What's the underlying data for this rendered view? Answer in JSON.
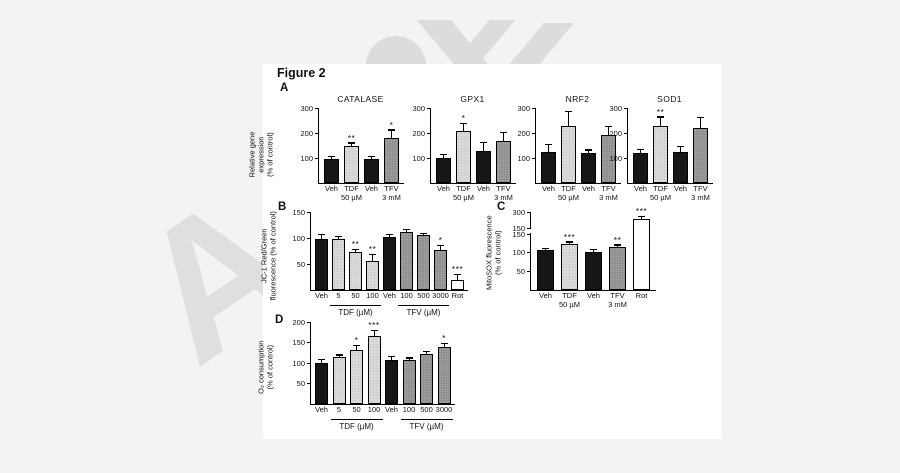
{
  "figure": {
    "title": "Figure 2"
  },
  "panels": {
    "A": "A",
    "B": "B",
    "C": "C",
    "D": "D"
  },
  "watermark": {
    "letter": "A"
  },
  "colors": {
    "bar_black": "#161616",
    "bar_light": "#d9d9d9",
    "bar_dark": "#8f8f8f",
    "bar_white": "#ffffff",
    "page": "#ffffff",
    "background": "#f3f3f3"
  },
  "chart_data": [
    {
      "type": "bar",
      "panel": "A",
      "title": "CATALASE",
      "ylabel": "Relative gene expression\n(% of control)",
      "categories": [
        "Veh",
        "TDF\n50 µM",
        "Veh",
        "TFV\n3 mM"
      ],
      "values": [
        95,
        150,
        95,
        182
      ],
      "errors": [
        10,
        8,
        10,
        28
      ],
      "sig": [
        "",
        "**",
        "",
        "*"
      ],
      "bar_colors": [
        "black",
        "light",
        "black",
        "dark"
      ],
      "yticks": [
        {
          "label": "100",
          "v": 100
        },
        {
          "label": "200",
          "v": 200
        },
        {
          "label": "300",
          "v": 300
        }
      ],
      "ylim": [
        0,
        300
      ],
      "grid": false
    },
    {
      "type": "bar",
      "panel": "A",
      "title": "GPX1",
      "ylabel": "",
      "categories": [
        "Veh",
        "TDF\n50 µM",
        "Veh",
        "TFV\n3 mM"
      ],
      "values": [
        100,
        210,
        130,
        168
      ],
      "errors": [
        12,
        25,
        30,
        33
      ],
      "sig": [
        "",
        "*",
        "",
        ""
      ],
      "bar_colors": [
        "black",
        "light",
        "black",
        "dark"
      ],
      "yticks": [
        {
          "label": "100",
          "v": 100
        },
        {
          "label": "200",
          "v": 200
        },
        {
          "label": "300",
          "v": 300
        }
      ],
      "ylim": [
        0,
        300
      ],
      "grid": false
    },
    {
      "type": "bar",
      "panel": "A",
      "title": "NRF2",
      "ylabel": "",
      "categories": [
        "Veh",
        "TDF\n50 µM",
        "Veh",
        "TFV\n3 mM"
      ],
      "values": [
        125,
        230,
        120,
        193
      ],
      "errors": [
        28,
        55,
        10,
        30
      ],
      "sig": [
        "",
        "",
        "",
        ""
      ],
      "bar_colors": [
        "black",
        "light",
        "black",
        "dark"
      ],
      "yticks": [
        {
          "label": "100",
          "v": 100
        },
        {
          "label": "200",
          "v": 200
        },
        {
          "label": "300",
          "v": 300
        }
      ],
      "ylim": [
        0,
        300
      ],
      "grid": false
    },
    {
      "type": "bar",
      "panel": "A",
      "title": "SOD1",
      "ylabel": "",
      "categories": [
        "Veh",
        "TDF\n50 µM",
        "Veh",
        "TFV\n3 mM"
      ],
      "values": [
        120,
        230,
        123,
        220
      ],
      "errors": [
        12,
        32,
        20,
        40
      ],
      "sig": [
        "",
        "**",
        "",
        ""
      ],
      "bar_colors": [
        "black",
        "light",
        "black",
        "dark"
      ],
      "yticks": [
        {
          "label": "100",
          "v": 100
        },
        {
          "label": "200",
          "v": 200
        },
        {
          "label": "300",
          "v": 300
        }
      ],
      "ylim": [
        0,
        300
      ],
      "grid": false
    },
    {
      "type": "bar",
      "panel": "B",
      "title": "",
      "ylabel": "JC-1 Red/Green\nfluorescence (% of control)",
      "categories": [
        "Veh",
        "5",
        "50",
        "100",
        "Veh",
        "100",
        "500",
        "3000",
        "Rot"
      ],
      "values": [
        98,
        99,
        73,
        55,
        102,
        112,
        106,
        77,
        20
      ],
      "errors": [
        8,
        3,
        4,
        12,
        3,
        3,
        2,
        7,
        8
      ],
      "sig": [
        "",
        "",
        "**",
        "**",
        "",
        "",
        "",
        "*",
        "***"
      ],
      "bar_colors": [
        "black",
        "light",
        "light",
        "light",
        "black",
        "dark",
        "dark",
        "dark",
        "white"
      ],
      "yticks": [
        {
          "label": "50",
          "v": 50
        },
        {
          "label": "100",
          "v": 100
        },
        {
          "label": "150",
          "v": 150
        }
      ],
      "ylim": [
        0,
        150
      ],
      "grid": false,
      "groups": [
        {
          "label": "TDF (µM)",
          "start": 1,
          "end": 3
        },
        {
          "label": "TFV (µM)",
          "start": 5,
          "end": 7
        }
      ]
    },
    {
      "type": "bar",
      "panel": "C",
      "title": "",
      "ylabel": "MitoSOX fluorescence\n(% of control)",
      "categories": [
        "Veh",
        "TDF\n50 µM",
        "Veh",
        "TFV\n3 mM",
        "Rot"
      ],
      "values": [
        107,
        122,
        103,
        115,
        240
      ],
      "errors": [
        3,
        5,
        3,
        4,
        15
      ],
      "sig": [
        "",
        "***",
        "",
        "**",
        "***"
      ],
      "bar_colors": [
        "black",
        "light",
        "black",
        "dark",
        "white"
      ],
      "yticks": [
        {
          "label": "50",
          "v": 50
        },
        {
          "label": "100",
          "v": 100
        },
        {
          "label": "150",
          "v": 150
        },
        {
          "label": "150",
          "v": 158
        },
        {
          "label": "300",
          "v": 300
        }
      ],
      "ylim": [
        0,
        300
      ],
      "axis_break": true,
      "grid": false
    },
    {
      "type": "bar",
      "panel": "D",
      "title": "",
      "ylabel": "O₂ consumption\n(% of control)",
      "categories": [
        "Veh",
        "5",
        "50",
        "100",
        "Veh",
        "100",
        "500",
        "3000"
      ],
      "values": [
        101,
        114,
        131,
        167,
        108,
        107,
        121,
        139
      ],
      "errors": [
        7,
        4,
        10,
        11,
        7,
        4,
        5,
        8
      ],
      "sig": [
        "",
        "",
        "*",
        "***",
        "",
        "",
        "",
        "*"
      ],
      "bar_colors": [
        "black",
        "light",
        "light",
        "light",
        "black",
        "dark",
        "dark",
        "dark"
      ],
      "yticks": [
        {
          "label": "50",
          "v": 50
        },
        {
          "label": "100",
          "v": 100
        },
        {
          "label": "150",
          "v": 150
        },
        {
          "label": "200",
          "v": 200
        }
      ],
      "ylim": [
        0,
        200
      ],
      "grid": false,
      "groups": [
        {
          "label": "TDF (µM)",
          "start": 1,
          "end": 3
        },
        {
          "label": "TFV (µM)",
          "start": 5,
          "end": 7
        }
      ]
    }
  ]
}
